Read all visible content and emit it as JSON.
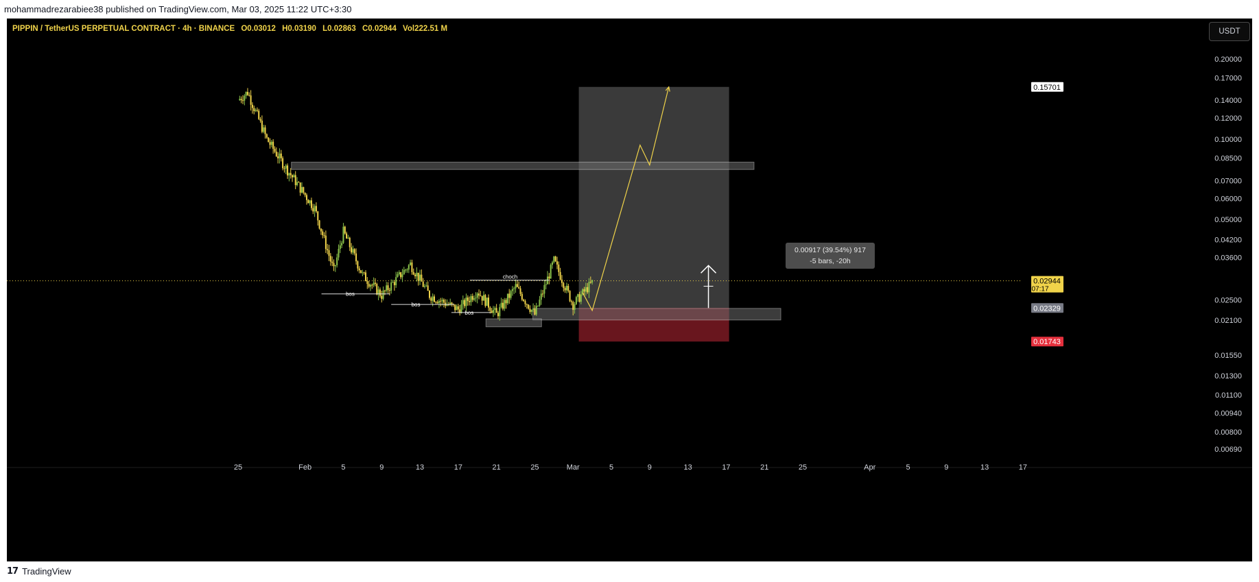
{
  "header": {
    "published": "mohammadrezarabiee38 published on TradingView.com, Mar 03, 2025 11:22 UTC+3:30"
  },
  "legend": {
    "symbol": "PIPPIN / TetherUS PERPETUAL CONTRACT · 4h · BINANCE",
    "open": "O0.03012",
    "high": "H0.03190",
    "low": "L0.02863",
    "close": "C0.02944",
    "volume": "Vol222.51 M"
  },
  "currency_button": "USDT",
  "footer": {
    "brand": "TradingView",
    "logo_glyph": "17"
  },
  "colors": {
    "background": "#000000",
    "candles": "#f0d34a",
    "candles_alt": "#8bc34a",
    "zone_gray": "#5d5d5d",
    "stop_red": "#7b1a23",
    "price_tag_close": "#f0d34a",
    "price_tag_stop": "#e5303d"
  },
  "chart_data": {
    "type": "candlestick",
    "interval": "4h",
    "scale": "log",
    "ylim": [
      0.0069,
      0.24
    ],
    "y_ticks": [
      "0.20000",
      "0.17000",
      "0.14000",
      "0.12000",
      "0.10000",
      "0.08500",
      "0.07000",
      "0.06000",
      "0.05000",
      "0.04200",
      "0.03600",
      "0.02500",
      "0.02100",
      "0.01550",
      "0.01300",
      "0.01100",
      "0.00940",
      "0.00800",
      "0.00690"
    ],
    "x_ticks": [
      "25",
      "Feb",
      "5",
      "9",
      "13",
      "17",
      "21",
      "25",
      "Mar",
      "5",
      "9",
      "13",
      "17",
      "21",
      "25",
      "Apr",
      "5",
      "9",
      "13",
      "17"
    ],
    "price_path": [
      {
        "date": "Jan 25",
        "price": 0.14
      },
      {
        "date": "Jan 26",
        "price": 0.15
      },
      {
        "date": "Jan 28",
        "price": 0.1
      },
      {
        "date": "Jan 30",
        "price": 0.078
      },
      {
        "date": "Feb 2",
        "price": 0.055
      },
      {
        "date": "Feb 4",
        "price": 0.032
      },
      {
        "date": "Feb 5",
        "price": 0.045
      },
      {
        "date": "Feb 7",
        "price": 0.031
      },
      {
        "date": "Feb 9",
        "price": 0.026
      },
      {
        "date": "Feb 12",
        "price": 0.034
      },
      {
        "date": "Feb 14",
        "price": 0.026
      },
      {
        "date": "Feb 17",
        "price": 0.023
      },
      {
        "date": "Feb 19",
        "price": 0.027
      },
      {
        "date": "Feb 21",
        "price": 0.022
      },
      {
        "date": "Feb 23",
        "price": 0.028
      },
      {
        "date": "Feb 25",
        "price": 0.022
      },
      {
        "date": "Feb 27",
        "price": 0.035
      },
      {
        "date": "Mar 1",
        "price": 0.024
      },
      {
        "date": "Mar 3",
        "price": 0.029
      }
    ],
    "price_labels": [
      {
        "value": "0.15701",
        "style": "target"
      },
      {
        "value": "0.02944",
        "sub": "07:17",
        "style": "close"
      },
      {
        "value": "0.02329",
        "style": "entry"
      },
      {
        "value": "0.01743",
        "style": "stop"
      }
    ],
    "annotations": [
      {
        "text": "bos"
      },
      {
        "text": "bos"
      },
      {
        "text": "bos"
      },
      {
        "text": "choch"
      }
    ],
    "measure": {
      "line1": "0.00917 (39.54%) 917",
      "line2": "-5 bars, -20h"
    },
    "zones": {
      "resistance": [
        0.077,
        0.082
      ],
      "support": [
        0.021,
        0.0232
      ],
      "target": 0.15701,
      "entry": 0.02329,
      "stop": 0.01743
    },
    "projection": [
      {
        "date": "Mar 2",
        "price": 0.0266
      },
      {
        "date": "Mar 3",
        "price": 0.0228
      },
      {
        "date": "Mar 8",
        "price": 0.095
      },
      {
        "date": "Mar 9",
        "price": 0.08
      },
      {
        "date": "Mar 11",
        "price": 0.157
      }
    ]
  }
}
